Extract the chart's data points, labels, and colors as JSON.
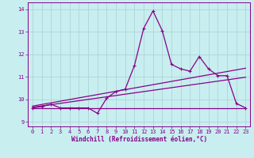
{
  "xlabel": "Windchill (Refroidissement éolien,°C)",
  "background_color": "#c8eef0",
  "grid_color": "#b0d8dc",
  "line_color": "#880088",
  "xlim": [
    -0.5,
    23.5
  ],
  "ylim": [
    8.8,
    14.3
  ],
  "yticks": [
    9,
    10,
    11,
    12,
    13,
    14
  ],
  "xticks": [
    0,
    1,
    2,
    3,
    4,
    5,
    6,
    7,
    8,
    9,
    10,
    11,
    12,
    13,
    14,
    15,
    16,
    17,
    18,
    19,
    20,
    21,
    22,
    23
  ],
  "main_data_x": [
    0,
    1,
    2,
    3,
    4,
    5,
    6,
    7,
    8,
    9,
    10,
    11,
    12,
    13,
    14,
    15,
    16,
    17,
    18,
    19,
    20,
    21,
    22,
    23
  ],
  "main_data_y": [
    9.62,
    9.68,
    9.78,
    9.62,
    9.62,
    9.62,
    9.62,
    9.38,
    10.05,
    10.35,
    10.45,
    11.5,
    13.15,
    13.92,
    13.05,
    11.55,
    11.35,
    11.25,
    11.9,
    11.35,
    11.05,
    11.05,
    9.82,
    9.62
  ],
  "line1_x": [
    0,
    23
  ],
  "line1_y": [
    9.62,
    9.62
  ],
  "line2_x": [
    0,
    23
  ],
  "line2_y": [
    9.65,
    10.98
  ],
  "line3_x": [
    0,
    23
  ],
  "line3_y": [
    9.7,
    11.38
  ]
}
